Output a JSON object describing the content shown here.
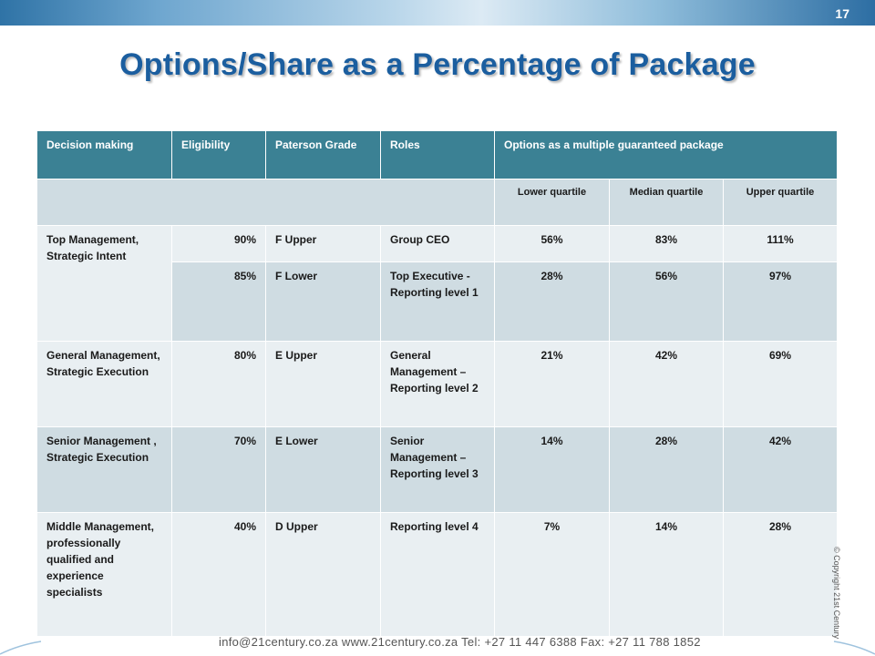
{
  "slide_number": "17",
  "title": "Options/Share as a Percentage of Package",
  "table": {
    "headers": [
      "Decision making",
      "Eligibility",
      "Paterson Grade",
      "Roles",
      "Options as a multiple guaranteed package"
    ],
    "quartiles": [
      "Lower quartile",
      "Median quartile",
      "Upper quartile"
    ],
    "groups": [
      {
        "decision": "Top Management, Strategic Intent",
        "rows": [
          {
            "eligibility": "90%",
            "grade": "F Upper",
            "role": "Group CEO",
            "lower": "56%",
            "median": "83%",
            "upper": "111%"
          },
          {
            "eligibility": "85%",
            "grade": "F Lower",
            "role": "Top Executive - Reporting level 1",
            "lower": "28%",
            "median": "56%",
            "upper": "97%"
          }
        ]
      },
      {
        "decision": "General Management, Strategic Execution",
        "rows": [
          {
            "eligibility": "80%",
            "grade": "E Upper",
            "role": "General Management – Reporting level 2",
            "lower": "21%",
            "median": "42%",
            "upper": "69%"
          }
        ]
      },
      {
        "decision": "Senior Management , Strategic Execution",
        "rows": [
          {
            "eligibility": "70%",
            "grade": "E Lower",
            "role": "Senior Management – Reporting level 3",
            "lower": "14%",
            "median": "28%",
            "upper": "42%"
          }
        ]
      },
      {
        "decision": "Middle Management, professionally qualified and experience specialists",
        "rows": [
          {
            "eligibility": "40%",
            "grade": "D Upper",
            "role": "Reporting level 4",
            "lower": "7%",
            "median": "14%",
            "upper": "28%"
          }
        ]
      }
    ]
  },
  "footer": {
    "contact": "info@21century.co.za   www.21century.co.za   Tel: +27 11 447 6388   Fax: +27 11 788 1852",
    "copyright": "© Copyright 21st Century"
  },
  "colors": {
    "header_bg": "#3b8194",
    "row_light": "#e9eff2",
    "row_dark": "#cfdce2",
    "title": "#1b5e9f"
  }
}
